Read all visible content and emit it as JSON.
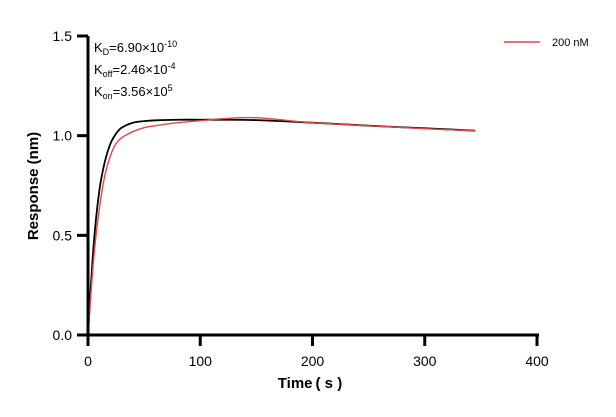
{
  "chart_data": {
    "type": "line",
    "title": "",
    "xlabel": "Time ( s )",
    "ylabel": "Response (nm)",
    "xlim": [
      0,
      400
    ],
    "ylim": [
      0,
      1.5
    ],
    "xticks": [
      "0",
      "100",
      "200",
      "300",
      "400"
    ],
    "yticks": [
      "0.0",
      "0.5",
      "1.0",
      "1.5"
    ],
    "grid": false,
    "legend_position": "top-right",
    "annotations": {
      "kd": {
        "base": "K",
        "sub": "D",
        "value": "=6.90×10",
        "exp": "-10"
      },
      "koff": {
        "base": "K",
        "sub": "off",
        "value": "=2.46×10",
        "exp": "-4"
      },
      "kon": {
        "base": "K",
        "sub": "on",
        "value": "=3.56×10",
        "exp": "5"
      }
    },
    "series": [
      {
        "name": "200 nM",
        "color": "#e0474c",
        "x": [
          0,
          5,
          10,
          15,
          20,
          25,
          30,
          40,
          50,
          60,
          80,
          100,
          120,
          150,
          200,
          250,
          300,
          345
        ],
        "y": [
          0,
          0.38,
          0.63,
          0.8,
          0.9,
          0.96,
          0.99,
          1.02,
          1.04,
          1.05,
          1.065,
          1.075,
          1.085,
          1.09,
          1.065,
          1.05,
          1.035,
          1.025
        ]
      },
      {
        "role": "fit",
        "color": "#000000",
        "x": [
          0,
          5,
          10,
          15,
          20,
          25,
          30,
          40,
          50,
          60,
          80,
          100,
          120,
          150,
          200,
          250,
          300,
          345
        ],
        "y": [
          0,
          0.45,
          0.72,
          0.87,
          0.96,
          1.01,
          1.04,
          1.065,
          1.073,
          1.077,
          1.08,
          1.08,
          1.08,
          1.078,
          1.065,
          1.05,
          1.037,
          1.025
        ]
      }
    ]
  }
}
